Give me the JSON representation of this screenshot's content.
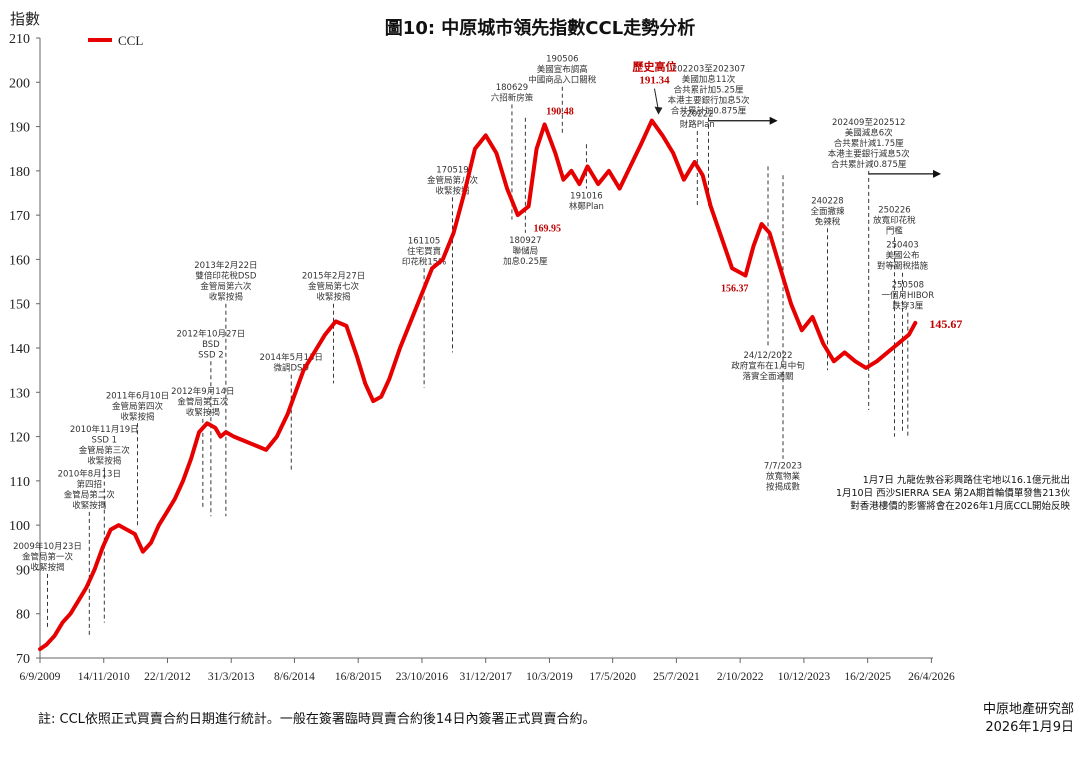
{
  "chart_data": {
    "type": "line",
    "title": "圖10: 中原城市領先指數CCL走勢分析",
    "ylabel": "指數",
    "ylim": [
      70,
      210
    ],
    "yticks": [
      70,
      80,
      90,
      100,
      110,
      120,
      130,
      140,
      150,
      160,
      170,
      180,
      190,
      200,
      210
    ],
    "xlim": [
      2009.68,
      2026.35
    ],
    "xtick_labels": [
      "6/9/2009",
      "14/11/2010",
      "22/1/2012",
      "31/3/2013",
      "8/6/2014",
      "16/8/2015",
      "23/10/2016",
      "31/12/2017",
      "10/3/2019",
      "17/5/2020",
      "25/7/2021",
      "2/10/2022",
      "10/12/2023",
      "16/2/2025",
      "26/4/2026"
    ],
    "xtick_positions": [
      2009.68,
      2010.87,
      2012.06,
      2013.25,
      2014.43,
      2015.62,
      2016.81,
      2018.0,
      2019.19,
      2020.37,
      2021.56,
      2022.75,
      2023.94,
      2025.13,
      2026.32
    ],
    "legend": {
      "label": "CCL",
      "color": "#e60000",
      "position": "top-left"
    },
    "series": [
      {
        "name": "CCL",
        "color": "#e60000",
        "x": [
          2009.68,
          2009.8,
          2009.95,
          2010.1,
          2010.25,
          2010.4,
          2010.55,
          2010.7,
          2010.85,
          2011.0,
          2011.15,
          2011.3,
          2011.45,
          2011.6,
          2011.75,
          2011.9,
          2012.05,
          2012.2,
          2012.35,
          2012.5,
          2012.65,
          2012.8,
          2012.95,
          2013.05,
          2013.15,
          2013.3,
          2013.5,
          2013.7,
          2013.9,
          2014.1,
          2014.3,
          2014.45,
          2014.6,
          2014.8,
          2015.0,
          2015.2,
          2015.4,
          2015.6,
          2015.75,
          2015.9,
          2016.05,
          2016.2,
          2016.4,
          2016.6,
          2016.8,
          2017.0,
          2017.2,
          2017.4,
          2017.6,
          2017.8,
          2018.0,
          2018.2,
          2018.4,
          2018.6,
          2018.8,
          2018.95,
          2019.1,
          2019.3,
          2019.45,
          2019.6,
          2019.75,
          2019.9,
          2020.1,
          2020.3,
          2020.5,
          2020.7,
          2020.9,
          2021.1,
          2021.3,
          2021.5,
          2021.7,
          2021.9,
          2022.05,
          2022.2,
          2022.4,
          2022.6,
          2022.85,
          2023.0,
          2023.15,
          2023.3,
          2023.5,
          2023.7,
          2023.9,
          2024.1,
          2024.3,
          2024.5,
          2024.7,
          2024.9,
          2025.1,
          2025.3,
          2025.5,
          2025.7,
          2025.9,
          2026.02
        ],
        "y": [
          72,
          73,
          75,
          78,
          80,
          83,
          86,
          90,
          95,
          99,
          100,
          99,
          98,
          94,
          96,
          100,
          103,
          106,
          110,
          115,
          121,
          123,
          122,
          120,
          121,
          120,
          119,
          118,
          117,
          120,
          125,
          130,
          135,
          139,
          143,
          146,
          145,
          138,
          132,
          128,
          129,
          133,
          140,
          146,
          152,
          158,
          160,
          166,
          175,
          185,
          188,
          184,
          176,
          170,
          172,
          185,
          190.48,
          184,
          178,
          180,
          177,
          181,
          177,
          180,
          176,
          181,
          186,
          191.34,
          188,
          184,
          178,
          182,
          179,
          172,
          165,
          158,
          156.37,
          163,
          168,
          166,
          158,
          150,
          144,
          147,
          141,
          137,
          139,
          137,
          135.5,
          137,
          139,
          141,
          143,
          145.67
        ]
      }
    ],
    "point_labels": [
      {
        "x": 2019.13,
        "y": 190.48,
        "label": "190.48"
      },
      {
        "x": 2019.15,
        "y": 169.95,
        "label": "169.95"
      },
      {
        "x": 2022.65,
        "y": 156.37,
        "label": "156.37"
      },
      {
        "x": 2026.02,
        "y": 145.67,
        "label": "145.67"
      }
    ],
    "peak_label": {
      "x": 2021.3,
      "y": 191.34,
      "title": "歷史高位",
      "value": "191.34"
    },
    "annotations": [
      {
        "x": 2009.82,
        "y_top": 89,
        "y_bottom": 77,
        "lines": [
          "2009年10月23日",
          "金管局第一次",
          "收緊按揭"
        ]
      },
      {
        "x": 2010.6,
        "y_top": 103,
        "y_bottom": 75,
        "lines": [
          "2010年8月13日",
          "第四招",
          "金管局第二次",
          "收緊按揭"
        ]
      },
      {
        "x": 2010.88,
        "y_top": 113,
        "y_bottom": 78,
        "lines": [
          "2010年11月19日",
          "SSD 1",
          "金管局第三次",
          "收緊按揭"
        ]
      },
      {
        "x": 2011.5,
        "y_top": 123,
        "y_bottom": 100,
        "lines": [
          "2011年6月10日",
          "金管局第四次",
          "收緊按揭"
        ]
      },
      {
        "x": 2012.72,
        "y_top": 124,
        "y_bottom": 104,
        "lines": [
          "2012年9月14日",
          "金管局第五次",
          "收緊按揭"
        ]
      },
      {
        "x": 2012.87,
        "y_top": 137,
        "y_bottom": 102,
        "lines": [
          "2012年10月27日",
          "BSD",
          "SSD 2"
        ]
      },
      {
        "x": 2013.15,
        "y_top": 150,
        "y_bottom": 102,
        "lines": [
          "2013年2月22日",
          "雙倍印花稅DSD",
          "金管局第六次",
          "收緊按揭"
        ]
      },
      {
        "x": 2014.37,
        "y_top": 134,
        "y_bottom": 112,
        "lines": [
          "2014年5月13日",
          "微調DSD"
        ]
      },
      {
        "x": 2015.16,
        "y_top": 150,
        "y_bottom": 132,
        "lines": [
          "2015年2月27日",
          "金管局第七次",
          "收緊按揭"
        ]
      },
      {
        "x": 2016.85,
        "y_top": 158,
        "y_bottom": 131,
        "lines": [
          "161105",
          "住宅買賣",
          "印花稅15%"
        ]
      },
      {
        "x": 2017.38,
        "y_top": 174,
        "y_bottom": 139,
        "lines": [
          "170519",
          "金管局第八次",
          "收緊按揭"
        ]
      },
      {
        "x": 2018.49,
        "y_top": 195,
        "y_bottom": 169,
        "lines": [
          "180629",
          "六招新房策"
        ]
      },
      {
        "x": 2018.74,
        "y_top": 192,
        "y_bottom": 166,
        "lines": [
          "180927",
          "聯儲局",
          "加息0.25厘"
        ],
        "label_below": true
      },
      {
        "x": 2019.43,
        "y_top": 199,
        "y_bottom": 188,
        "lines": [
          "190506",
          "美國宣布調高",
          "中國商品入口關稅"
        ]
      },
      {
        "x": 2019.88,
        "y_top": 186,
        "y_bottom": 176,
        "lines": [
          "191016",
          "林鄭Plan"
        ],
        "label_below": true
      },
      {
        "x": 2021.95,
        "y_top": 189,
        "y_bottom": 172,
        "lines": [
          "220222",
          "財路Plan"
        ]
      },
      {
        "x": 2022.16,
        "y_top": 192,
        "y_bottom": 172,
        "lines": [
          "202203至202307",
          "美國加息11次",
          "合共累計加5.25厘",
          "本港主要銀行加息5次",
          "合共累計加0.875厘"
        ],
        "arrow_to": 2023.45
      },
      {
        "x": 2023.27,
        "y_top": 181,
        "y_bottom": 140,
        "lines": [
          "24/12/2022",
          "政府宣布在1月中旬",
          "落實全面通關"
        ],
        "label_below": true
      },
      {
        "x": 2023.55,
        "y_top": 179,
        "y_bottom": 115,
        "lines": [
          "7/7/2023",
          "放寬物業",
          "按揭成數"
        ],
        "label_below": true
      },
      {
        "x": 2024.38,
        "y_top": 167,
        "y_bottom": 135,
        "lines": [
          "240228",
          "全面撤辣",
          "免辣稅"
        ]
      },
      {
        "x": 2025.15,
        "y_top": 180,
        "y_bottom": 126,
        "lines": [
          "202409至202512",
          "美國減息6次",
          "合共累計減1.75厘",
          "本港主要銀行減息5次",
          "合共累計減0.875厘"
        ],
        "arrow_to": 2026.5
      },
      {
        "x": 2025.63,
        "y_top": 165,
        "y_bottom": 120,
        "lines": [
          "250226",
          "放寬印花稅",
          "門檻"
        ]
      },
      {
        "x": 2025.78,
        "y_top": 157,
        "y_bottom": 121,
        "lines": [
          "250403",
          "美國公布",
          "對等關稅措施"
        ]
      },
      {
        "x": 2025.88,
        "y_top": 148,
        "y_bottom": 120,
        "lines": [
          "250508",
          "一個月HIBOR",
          "跌穿3厘"
        ]
      }
    ]
  },
  "side_note": {
    "lines": [
      "1月7日 九龍佐敦谷彩興路住宅地以16.1億元批出",
      "1月10日 西沙SIERRA SEA 第2A期首輪價單發售213伙",
      "對香港樓價的影響將會在2026年1月底CCL開始反映"
    ]
  },
  "footnote": "註: CCL依照正式買賣合約日期進行統計。一般在簽署臨時買賣合約後14日內簽署正式買賣合約。",
  "source": {
    "org": "中原地產研究部",
    "date": "2026年1月9日"
  }
}
